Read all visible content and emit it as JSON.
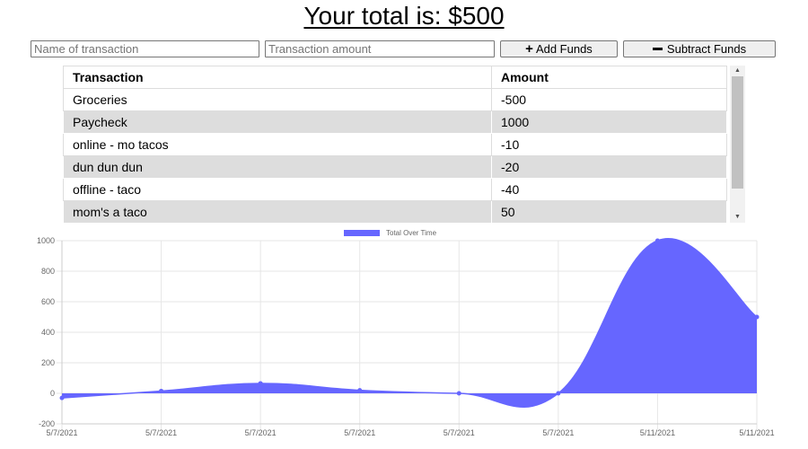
{
  "header": {
    "total_label": "Your total is: $500"
  },
  "form": {
    "name_placeholder": "Name of transaction",
    "amount_placeholder": "Transaction amount",
    "add_label": "Add Funds",
    "subtract_label": "Subtract Funds"
  },
  "table": {
    "headers": [
      "Transaction",
      "Amount"
    ],
    "rows": [
      {
        "name": "Groceries",
        "amount": "-500"
      },
      {
        "name": "Paycheck",
        "amount": "1000"
      },
      {
        "name": "online - mo tacos",
        "amount": "-10"
      },
      {
        "name": "dun dun dun",
        "amount": "-20"
      },
      {
        "name": "offline - taco",
        "amount": "-40"
      },
      {
        "name": "mom's a taco",
        "amount": "50"
      }
    ]
  },
  "chart_data": {
    "type": "area",
    "x": [
      "5/7/2021",
      "5/7/2021",
      "5/7/2021",
      "5/7/2021",
      "5/7/2021",
      "5/7/2021",
      "5/11/2021",
      "5/11/2021"
    ],
    "series": [
      {
        "name": "Total Over Time",
        "values": [
          -30,
          15,
          65,
          20,
          0,
          0,
          1000,
          500
        ]
      }
    ],
    "ylim": [
      -200,
      1000
    ],
    "yticks": [
      -200,
      0,
      200,
      400,
      600,
      800,
      1000
    ],
    "grid": true,
    "legend": "top",
    "color": "#6666ff"
  }
}
